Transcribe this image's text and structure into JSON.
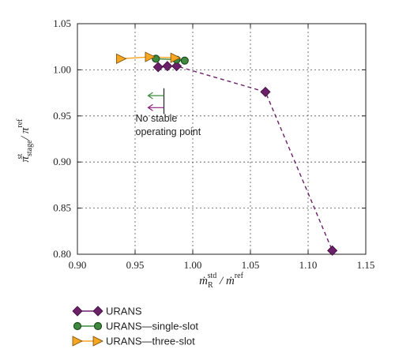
{
  "chart_data": {
    "type": "line",
    "xlabel": {
      "base": "ṁ",
      "sub": "R",
      "sup": "std",
      "sep": " / ",
      "base2": "ṁ",
      "sup2": "ref"
    },
    "ylabel": {
      "base": "π",
      "sub": "stage",
      "sup": "st",
      "sep": " / ",
      "base2": "π",
      "sup2": "ref"
    },
    "xlim": [
      0.9,
      1.15
    ],
    "ylim": [
      0.8,
      1.05
    ],
    "xticks": [
      "0.90",
      "0.95",
      "1.00",
      "1.05",
      "1.10",
      "1.15"
    ],
    "yticks": [
      "0.80",
      "0.85",
      "0.90",
      "0.95",
      "1.00",
      "1.05"
    ],
    "grid": true,
    "legend_position": "bottom-left, outside plot",
    "series": [
      {
        "name": "URANS",
        "color": "#6b2069",
        "line_style": "dashed",
        "marker": "diamond",
        "points": [
          [
            0.97,
            1.003
          ],
          [
            0.978,
            1.004
          ],
          [
            0.986,
            1.004
          ],
          [
            1.063,
            0.976
          ],
          [
            1.121,
            0.804
          ]
        ]
      },
      {
        "name": "URANS—single-slot",
        "color": "#1e4d1e",
        "marker_fill": "#3f8a3f",
        "line_style": "solid",
        "marker": "circle",
        "points": [
          [
            0.968,
            1.012
          ],
          [
            0.986,
            1.011
          ],
          [
            0.993,
            1.01
          ]
        ]
      },
      {
        "name": "URANS—three-slot",
        "color": "#f5a623",
        "marker_fill": "#f5a623",
        "line_style": "solid",
        "marker": "triangle-right",
        "points": [
          [
            0.938,
            1.012
          ],
          [
            0.963,
            1.014
          ],
          [
            0.985,
            1.013
          ]
        ]
      }
    ],
    "annotation": {
      "lines": [
        "No stable",
        "operating point"
      ],
      "marker_x": 0.975,
      "arrows": [
        {
          "y": 0.972,
          "color": "#3f8a3f"
        },
        {
          "y": 0.959,
          "color": "#8b1f7a"
        }
      ],
      "bar_y_range": [
        0.952,
        0.98
      ]
    }
  }
}
